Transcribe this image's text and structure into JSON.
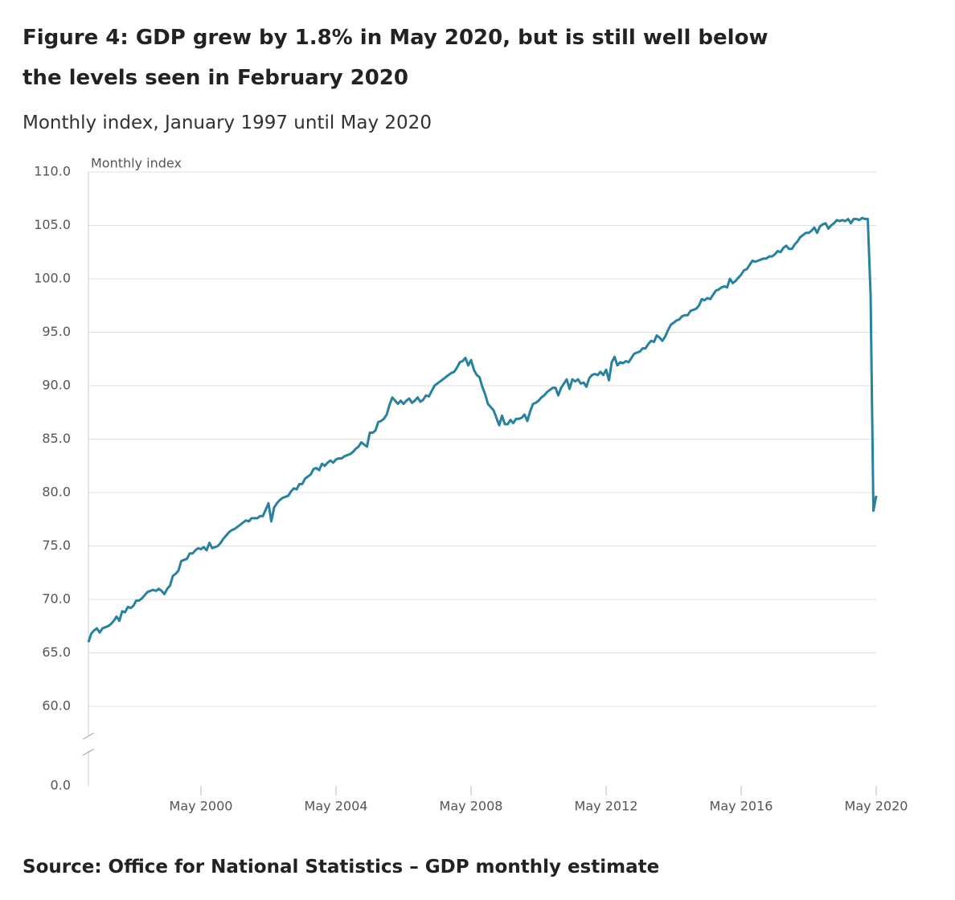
{
  "chart_data": {
    "type": "line",
    "title": "Figure 4: GDP grew by 1.8% in May 2020, but is still well below the levels seen in February 2020",
    "subtitle": "Monthly index, January 1997 until May 2020",
    "y_label": "Monthly index",
    "source": "Source: Office for National Statistics – GDP monthly estimate",
    "color": "#27829f",
    "grid": true,
    "y_axis_break": true,
    "ylim": [
      0,
      110
    ],
    "yticks": [
      {
        "value": 0,
        "label": "0.0"
      },
      {
        "value": 60,
        "label": "60.0"
      },
      {
        "value": 65,
        "label": "65.0"
      },
      {
        "value": 70,
        "label": "70.0"
      },
      {
        "value": 75,
        "label": "75.0"
      },
      {
        "value": 80,
        "label": "80.0"
      },
      {
        "value": 85,
        "label": "85.0"
      },
      {
        "value": 90,
        "label": "90.0"
      },
      {
        "value": 95,
        "label": "95.0"
      },
      {
        "value": 100,
        "label": "100.0"
      },
      {
        "value": 105,
        "label": "105.0"
      },
      {
        "value": 110,
        "label": "110.0"
      }
    ],
    "xticks": [
      "May 2000",
      "May 2004",
      "May 2008",
      "May 2012",
      "May 2016",
      "May 2020"
    ],
    "x": [
      "Jan 1997",
      "Feb 1997",
      "Mar 1997",
      "Apr 1997",
      "May 1997",
      "Jun 1997",
      "Jul 1997",
      "Aug 1997",
      "Sep 1997",
      "Oct 1997",
      "Nov 1997",
      "Dec 1997",
      "Jan 1998",
      "Feb 1998",
      "Mar 1998",
      "Apr 1998",
      "May 1998",
      "Jun 1998",
      "Jul 1998",
      "Aug 1998",
      "Sep 1998",
      "Oct 1998",
      "Nov 1998",
      "Dec 1998",
      "Jan 1999",
      "Feb 1999",
      "Mar 1999",
      "Apr 1999",
      "May 1999",
      "Jun 1999",
      "Jul 1999",
      "Aug 1999",
      "Sep 1999",
      "Oct 1999",
      "Nov 1999",
      "Dec 1999",
      "Jan 2000",
      "Feb 2000",
      "Mar 2000",
      "Apr 2000",
      "May 2000",
      "Jun 2000",
      "Jul 2000",
      "Aug 2000",
      "Sep 2000",
      "Oct 2000",
      "Nov 2000",
      "Dec 2000",
      "Jan 2001",
      "Feb 2001",
      "Mar 2001",
      "Apr 2001",
      "May 2001",
      "Jun 2001",
      "Jul 2001",
      "Aug 2001",
      "Sep 2001",
      "Oct 2001",
      "Nov 2001",
      "Dec 2001",
      "Jan 2002",
      "Feb 2002",
      "Mar 2002",
      "Apr 2002",
      "May 2002",
      "Jun 2002",
      "Jul 2002",
      "Aug 2002",
      "Sep 2002",
      "Oct 2002",
      "Nov 2002",
      "Dec 2002",
      "Jan 2003",
      "Feb 2003",
      "Mar 2003",
      "Apr 2003",
      "May 2003",
      "Jun 2003",
      "Jul 2003",
      "Aug 2003",
      "Sep 2003",
      "Oct 2003",
      "Nov 2003",
      "Dec 2003",
      "Jan 2004",
      "Feb 2004",
      "Mar 2004",
      "Apr 2004",
      "May 2004",
      "Jun 2004",
      "Jul 2004",
      "Aug 2004",
      "Sep 2004",
      "Oct 2004",
      "Nov 2004",
      "Dec 2004",
      "Jan 2005",
      "Feb 2005",
      "Mar 2005",
      "Apr 2005",
      "May 2005",
      "Jun 2005",
      "Jul 2005",
      "Aug 2005",
      "Sep 2005",
      "Oct 2005",
      "Nov 2005",
      "Dec 2005",
      "Jan 2006",
      "Feb 2006",
      "Mar 2006",
      "Apr 2006",
      "May 2006",
      "Jun 2006",
      "Jul 2006",
      "Aug 2006",
      "Sep 2006",
      "Oct 2006",
      "Nov 2006",
      "Dec 2006",
      "Jan 2007",
      "Feb 2007",
      "Mar 2007",
      "Apr 2007",
      "May 2007",
      "Jun 2007",
      "Jul 2007",
      "Aug 2007",
      "Sep 2007",
      "Oct 2007",
      "Nov 2007",
      "Dec 2007",
      "Jan 2008",
      "Feb 2008",
      "Mar 2008",
      "Apr 2008",
      "May 2008",
      "Jun 2008",
      "Jul 2008",
      "Aug 2008",
      "Sep 2008",
      "Oct 2008",
      "Nov 2008",
      "Dec 2008",
      "Jan 2009",
      "Feb 2009",
      "Mar 2009",
      "Apr 2009",
      "May 2009",
      "Jun 2009",
      "Jul 2009",
      "Aug 2009",
      "Sep 2009",
      "Oct 2009",
      "Nov 2009",
      "Dec 2009",
      "Jan 2010",
      "Feb 2010",
      "Mar 2010",
      "Apr 2010",
      "May 2010",
      "Jun 2010",
      "Jul 2010",
      "Aug 2010",
      "Sep 2010",
      "Oct 2010",
      "Nov 2010",
      "Dec 2010",
      "Jan 2011",
      "Feb 2011",
      "Mar 2011",
      "Apr 2011",
      "May 2011",
      "Jun 2011",
      "Jul 2011",
      "Aug 2011",
      "Sep 2011",
      "Oct 2011",
      "Nov 2011",
      "Dec 2011",
      "Jan 2012",
      "Feb 2012",
      "Mar 2012",
      "Apr 2012",
      "May 2012",
      "Jun 2012",
      "Jul 2012",
      "Aug 2012",
      "Sep 2012",
      "Oct 2012",
      "Nov 2012",
      "Dec 2012",
      "Jan 2013",
      "Feb 2013",
      "Mar 2013",
      "Apr 2013",
      "May 2013",
      "Jun 2013",
      "Jul 2013",
      "Aug 2013",
      "Sep 2013",
      "Oct 2013",
      "Nov 2013",
      "Dec 2013",
      "Jan 2014",
      "Feb 2014",
      "Mar 2014",
      "Apr 2014",
      "May 2014",
      "Jun 2014",
      "Jul 2014",
      "Aug 2014",
      "Sep 2014",
      "Oct 2014",
      "Nov 2014",
      "Dec 2014",
      "Jan 2015",
      "Feb 2015",
      "Mar 2015",
      "Apr 2015",
      "May 2015",
      "Jun 2015",
      "Jul 2015",
      "Aug 2015",
      "Sep 2015",
      "Oct 2015",
      "Nov 2015",
      "Dec 2015",
      "Jan 2016",
      "Feb 2016",
      "Mar 2016",
      "Apr 2016",
      "May 2016",
      "Jun 2016",
      "Jul 2016",
      "Aug 2016",
      "Sep 2016",
      "Oct 2016",
      "Nov 2016",
      "Dec 2016",
      "Jan 2017",
      "Feb 2017",
      "Mar 2017",
      "Apr 2017",
      "May 2017",
      "Jun 2017",
      "Jul 2017",
      "Aug 2017",
      "Sep 2017",
      "Oct 2017",
      "Nov 2017",
      "Dec 2017",
      "Jan 2018",
      "Feb 2018",
      "Mar 2018",
      "Apr 2018",
      "May 2018",
      "Jun 2018",
      "Jul 2018",
      "Aug 2018",
      "Sep 2018",
      "Oct 2018",
      "Nov 2018",
      "Dec 2018",
      "Jan 2019",
      "Feb 2019",
      "Mar 2019",
      "Apr 2019",
      "May 2019",
      "Jun 2019",
      "Jul 2019",
      "Aug 2019",
      "Sep 2019",
      "Oct 2019",
      "Nov 2019",
      "Dec 2019",
      "Jan 2020",
      "Feb 2020",
      "Mar 2020",
      "Apr 2020",
      "May 2020"
    ],
    "values": [
      66.0,
      66.8,
      67.1,
      67.3,
      66.9,
      67.3,
      67.4,
      67.5,
      67.7,
      68.0,
      68.4,
      68.0,
      68.9,
      68.8,
      69.3,
      69.2,
      69.4,
      69.9,
      69.9,
      70.1,
      70.4,
      70.7,
      70.8,
      70.9,
      70.8,
      71.0,
      70.8,
      70.5,
      71.0,
      71.3,
      72.2,
      72.4,
      72.7,
      73.6,
      73.7,
      73.8,
      74.3,
      74.3,
      74.6,
      74.8,
      74.7,
      74.9,
      74.6,
      75.3,
      74.8,
      74.9,
      75.0,
      75.3,
      75.7,
      76.0,
      76.3,
      76.5,
      76.6,
      76.8,
      77.0,
      77.2,
      77.4,
      77.3,
      77.6,
      77.6,
      77.6,
      77.8,
      77.8,
      78.4,
      79.0,
      77.3,
      78.6,
      79.0,
      79.3,
      79.5,
      79.6,
      79.7,
      80.1,
      80.4,
      80.3,
      80.8,
      80.8,
      81.3,
      81.5,
      81.7,
      82.2,
      82.3,
      82.1,
      82.7,
      82.5,
      82.8,
      83.0,
      82.8,
      83.1,
      83.2,
      83.2,
      83.4,
      83.5,
      83.6,
      83.8,
      84.1,
      84.3,
      84.7,
      84.5,
      84.3,
      85.6,
      85.6,
      85.8,
      86.6,
      86.7,
      86.9,
      87.3,
      88.2,
      88.9,
      88.6,
      88.3,
      88.6,
      88.3,
      88.6,
      88.8,
      88.4,
      88.6,
      88.9,
      88.5,
      88.7,
      89.1,
      89.0,
      89.5,
      90.0,
      90.2,
      90.4,
      90.6,
      90.8,
      91.0,
      91.2,
      91.3,
      91.7,
      92.2,
      92.3,
      92.6,
      91.9,
      92.4,
      91.5,
      91.0,
      90.8,
      89.9,
      89.2,
      88.3,
      88.0,
      87.7,
      87.0,
      86.3,
      87.2,
      86.4,
      86.4,
      86.8,
      86.5,
      86.9,
      86.9,
      87.0,
      87.3,
      86.7,
      87.6,
      88.3,
      88.4,
      88.6,
      88.9,
      89.1,
      89.4,
      89.6,
      89.8,
      89.8,
      89.1,
      89.8,
      90.2,
      90.6,
      89.7,
      90.6,
      90.4,
      90.6,
      90.2,
      90.3,
      89.9,
      90.7,
      91.0,
      91.1,
      91.0,
      91.3,
      91.0,
      91.5,
      90.5,
      92.2,
      92.7,
      91.9,
      92.2,
      92.1,
      92.3,
      92.2,
      92.6,
      93.0,
      93.1,
      93.2,
      93.5,
      93.5,
      93.9,
      94.2,
      94.1,
      94.7,
      94.5,
      94.2,
      94.6,
      95.2,
      95.7,
      95.9,
      96.1,
      96.2,
      96.5,
      96.6,
      96.6,
      97.0,
      97.1,
      97.2,
      97.5,
      98.1,
      98.0,
      98.2,
      98.1,
      98.5,
      98.9,
      99.0,
      99.2,
      99.3,
      99.2,
      100.0,
      99.6,
      99.8,
      100.1,
      100.4,
      100.8,
      100.9,
      101.3,
      101.7,
      101.6,
      101.7,
      101.8,
      101.9,
      101.9,
      102.1,
      102.1,
      102.3,
      102.6,
      102.5,
      102.9,
      103.1,
      102.8,
      102.8,
      103.2,
      103.5,
      103.9,
      104.1,
      104.3,
      104.3,
      104.5,
      104.8,
      104.3,
      104.9,
      105.1,
      105.2,
      104.7,
      105.0,
      105.2,
      105.5,
      105.4,
      105.5,
      105.4,
      105.6,
      105.2,
      105.6,
      105.6,
      105.5,
      105.7,
      105.6,
      105.6,
      98.5,
      78.3,
      79.7
    ]
  }
}
